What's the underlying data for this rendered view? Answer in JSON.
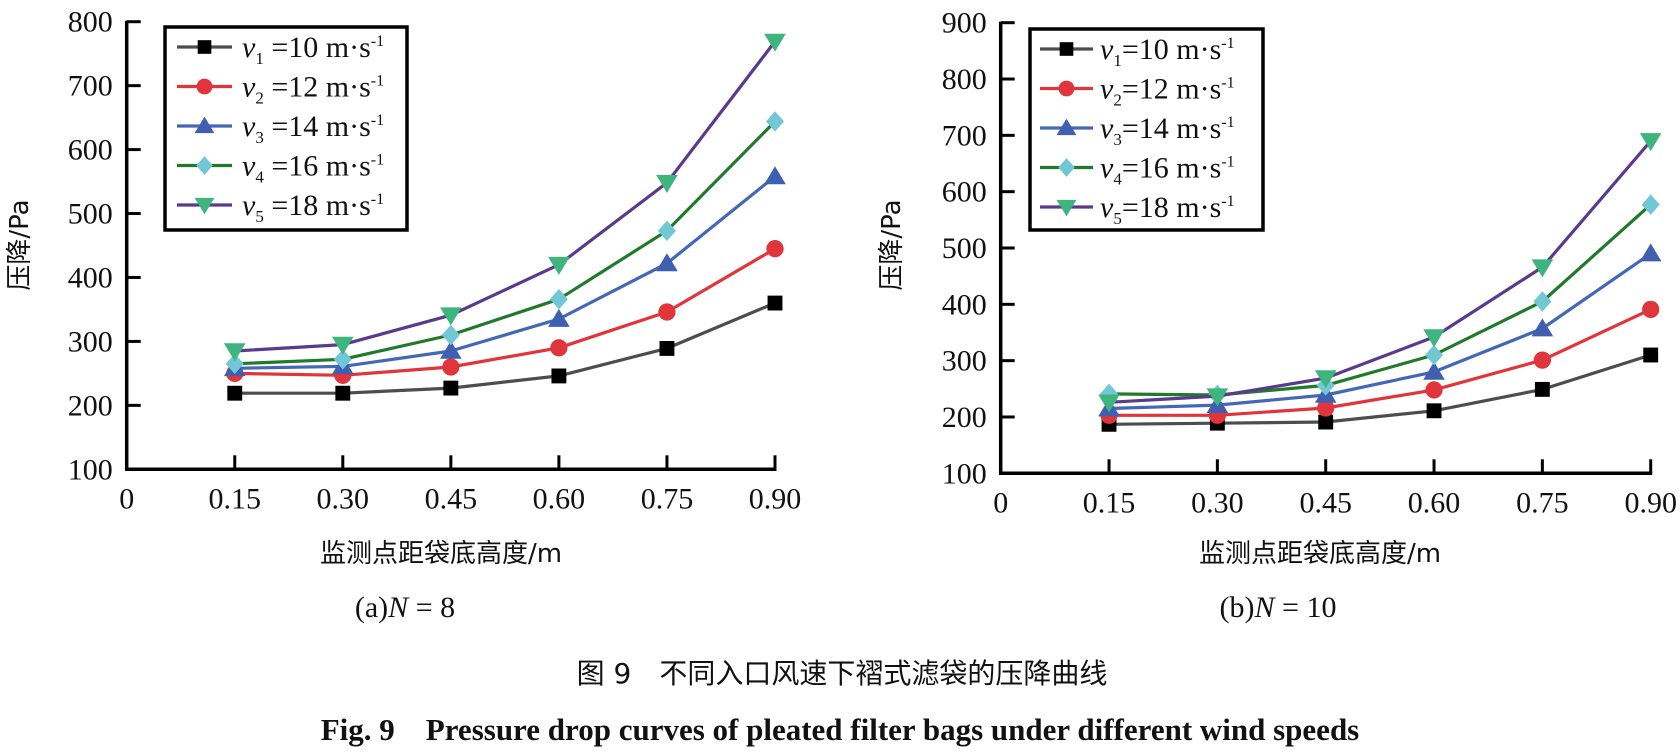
{
  "figure": {
    "caption_cn": "图 9　不同入口风速下褶式滤袋的压降曲线",
    "caption_en": "Fig. 9　Pressure drop curves of pleated filter bags under different wind speeds"
  },
  "series_style": [
    {
      "key": "v1",
      "line_color": "#4d4d4d",
      "marker_color": "#000000",
      "marker": "square"
    },
    {
      "key": "v2",
      "line_color": "#e0353b",
      "marker_color": "#e0353b",
      "marker": "circle"
    },
    {
      "key": "v3",
      "line_color": "#4468b5",
      "marker_color": "#3f5fb0",
      "marker": "triangle-up"
    },
    {
      "key": "v4",
      "line_color": "#217a2c",
      "marker_color": "#72c7d4",
      "marker": "diamond"
    },
    {
      "key": "v5",
      "line_color": "#5a3a8c",
      "marker_color": "#3db57d",
      "marker": "triangle-down"
    }
  ],
  "chart_data": [
    {
      "type": "line",
      "panel_caption": {
        "prefix": "(a)",
        "var": "N",
        "rest": " = 8"
      },
      "title": "",
      "xlabel": "监测点距袋底高度/m",
      "ylabel": "压降/Pa",
      "x": [
        0.15,
        0.3,
        0.45,
        0.6,
        0.75,
        0.9
      ],
      "xticks": [
        "0",
        "0.15",
        "0.30",
        "0.45",
        "0.60",
        "0.75",
        "0.90"
      ],
      "xlim": [
        0,
        0.9
      ],
      "yticks": [
        "100",
        "200",
        "300",
        "400",
        "500",
        "600",
        "700",
        "800"
      ],
      "ylim": [
        100,
        800
      ],
      "grid": false,
      "legend_position": "top-left",
      "series": [
        {
          "name": "v1 =10 m·s-1",
          "var": "v",
          "sub": "1",
          "label": " =10 m·s",
          "sup": "-1",
          "values": [
            219,
            219,
            227,
            246,
            289,
            360
          ]
        },
        {
          "name": "v2 =12 m·s-1",
          "var": "v",
          "sub": "2",
          "label": " =12 m·s",
          "sup": "-1",
          "values": [
            250,
            247,
            260,
            290,
            346,
            445
          ]
        },
        {
          "name": "v3 =14 m·s-1",
          "var": "v",
          "sub": "3",
          "label": " =14 m·s",
          "sup": "-1",
          "values": [
            258,
            261,
            285,
            335,
            422,
            558
          ]
        },
        {
          "name": "v4 =16 m·s-1",
          "var": "v",
          "sub": "4",
          "label": " =16 m·s",
          "sup": "-1",
          "values": [
            265,
            272,
            310,
            366,
            473,
            644
          ]
        },
        {
          "name": "v5 =18 m·s-1",
          "var": "v",
          "sub": "5",
          "label": " =18 m·s",
          "sup": "-1",
          "values": [
            285,
            295,
            341,
            420,
            548,
            769
          ]
        }
      ]
    },
    {
      "type": "line",
      "panel_caption": {
        "prefix": "(b)",
        "var": "N",
        "rest": " = 10"
      },
      "title": "",
      "xlabel": "监测点距袋底高度/m",
      "ylabel": "压降/Pa",
      "x": [
        0.15,
        0.3,
        0.45,
        0.6,
        0.75,
        0.9
      ],
      "xticks": [
        "0",
        "0.15",
        "0.30",
        "0.45",
        "0.60",
        "0.75",
        "0.90"
      ],
      "xlim": [
        0,
        0.9
      ],
      "yticks": [
        "100",
        "200",
        "300",
        "400",
        "500",
        "600",
        "700",
        "800",
        "900"
      ],
      "ylim": [
        100,
        900
      ],
      "grid": false,
      "legend_position": "top-left",
      "series": [
        {
          "name": "v1=10 m·s-1",
          "var": "v",
          "sub": "1",
          "label": "=10 m·s",
          "sup": "-1",
          "values": [
            187,
            189,
            191,
            211,
            249,
            310
          ]
        },
        {
          "name": "v2=12 m·s-1",
          "var": "v",
          "sub": "2",
          "label": "=12 m·s",
          "sup": "-1",
          "values": [
            203,
            203,
            216,
            248,
            301,
            391
          ]
        },
        {
          "name": "v3=14 m·s-1",
          "var": "v",
          "sub": "3",
          "label": "=14 m·s",
          "sup": "-1",
          "values": [
            215,
            221,
            239,
            280,
            357,
            490
          ]
        },
        {
          "name": "v4=16 m·s-1",
          "var": "v",
          "sub": "4",
          "label": "=16 m·s",
          "sup": "-1",
          "values": [
            241,
            239,
            256,
            310,
            405,
            577
          ]
        },
        {
          "name": "v5=18 m·s-1",
          "var": "v",
          "sub": "5",
          "label": "=18 m·s",
          "sup": "-1",
          "values": [
            226,
            237,
            269,
            342,
            466,
            690
          ]
        }
      ]
    }
  ]
}
